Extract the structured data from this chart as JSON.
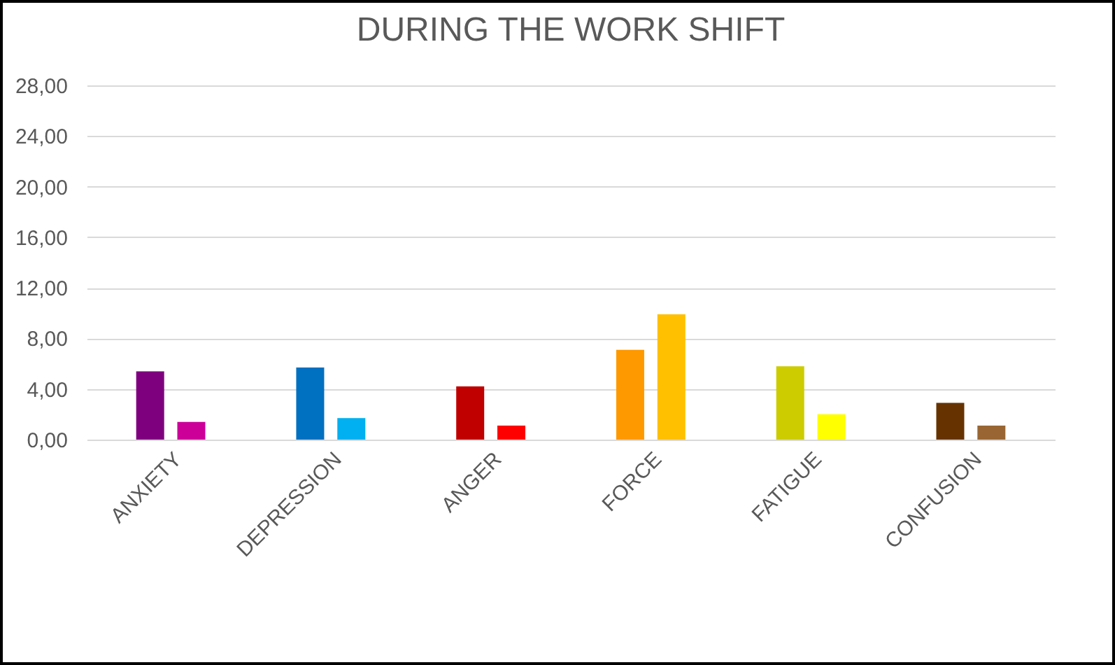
{
  "chart_data": {
    "type": "bar",
    "title": "DURING THE WORK SHIFT",
    "categories": [
      "ANXIETY",
      "DEPRESSION",
      "ANGER",
      "FORCE",
      "FATIGUE",
      "CONFUSION"
    ],
    "series": [
      {
        "colors": [
          "#7f007f",
          "#0070c0",
          "#c00000",
          "#ff9900",
          "#cccc00",
          "#663300"
        ],
        "values": [
          5.4,
          5.7,
          4.2,
          7.1,
          5.8,
          2.9
        ]
      },
      {
        "colors": [
          "#cc0099",
          "#00b0f0",
          "#ff0000",
          "#ffc000",
          "#ffff00",
          "#996633"
        ],
        "values": [
          1.4,
          1.7,
          1.1,
          9.9,
          2.0,
          1.1
        ]
      }
    ],
    "ylim": [
      0,
      28
    ],
    "yticks": [
      {
        "value": 0,
        "label": "0,00"
      },
      {
        "value": 4,
        "label": "4,00"
      },
      {
        "value": 8,
        "label": "8,00"
      },
      {
        "value": 12,
        "label": "12,00"
      },
      {
        "value": 16,
        "label": "16,00"
      },
      {
        "value": 20,
        "label": "20,00"
      },
      {
        "value": 24,
        "label": "24,00"
      },
      {
        "value": 28,
        "label": "28,00"
      }
    ],
    "grid": true
  }
}
